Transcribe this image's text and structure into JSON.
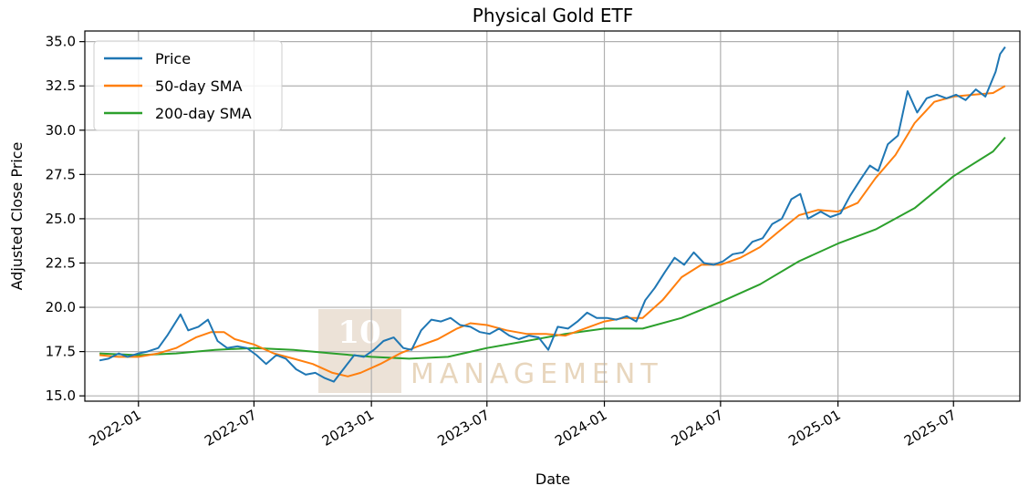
{
  "chart_data": {
    "type": "line",
    "title": "Physical Gold ETF",
    "xlabel": "Date",
    "ylabel": "Adjusted Close Price",
    "xlim": [
      "2021-10-09",
      "2025-10-13"
    ],
    "ylim": [
      14.7,
      35.6
    ],
    "x_ticks": [
      "2022-01",
      "2022-07",
      "2023-01",
      "2023-07",
      "2024-01",
      "2024-07",
      "2025-01",
      "2025-07"
    ],
    "y_ticks": [
      15.0,
      17.5,
      20.0,
      22.5,
      25.0,
      27.5,
      30.0,
      32.5,
      35.0
    ],
    "grid": true,
    "legend_position": "upper left",
    "watermark": {
      "number": "10",
      "word": "MANAGEMENT"
    },
    "series": [
      {
        "name": "Price",
        "color": "#1f77b4",
        "points": [
          [
            "2021-11-01",
            17.0
          ],
          [
            "2021-11-15",
            17.1
          ],
          [
            "2021-12-01",
            17.4
          ],
          [
            "2021-12-15",
            17.2
          ],
          [
            "2022-01-01",
            17.4
          ],
          [
            "2022-01-15",
            17.5
          ],
          [
            "2022-02-01",
            17.7
          ],
          [
            "2022-02-15",
            18.4
          ],
          [
            "2022-03-08",
            19.6
          ],
          [
            "2022-03-20",
            18.7
          ],
          [
            "2022-04-05",
            18.9
          ],
          [
            "2022-04-20",
            19.3
          ],
          [
            "2022-05-05",
            18.1
          ],
          [
            "2022-05-20",
            17.7
          ],
          [
            "2022-06-05",
            17.8
          ],
          [
            "2022-06-20",
            17.7
          ],
          [
            "2022-07-05",
            17.3
          ],
          [
            "2022-07-20",
            16.8
          ],
          [
            "2022-08-05",
            17.3
          ],
          [
            "2022-08-20",
            17.1
          ],
          [
            "2022-09-05",
            16.5
          ],
          [
            "2022-09-20",
            16.2
          ],
          [
            "2022-10-05",
            16.3
          ],
          [
            "2022-10-20",
            16.0
          ],
          [
            "2022-11-03",
            15.8
          ],
          [
            "2022-11-20",
            16.6
          ],
          [
            "2022-12-05",
            17.3
          ],
          [
            "2022-12-20",
            17.2
          ],
          [
            "2023-01-05",
            17.6
          ],
          [
            "2023-01-20",
            18.1
          ],
          [
            "2023-02-05",
            18.3
          ],
          [
            "2023-02-20",
            17.7
          ],
          [
            "2023-03-05",
            17.6
          ],
          [
            "2023-03-20",
            18.7
          ],
          [
            "2023-04-05",
            19.3
          ],
          [
            "2023-04-20",
            19.2
          ],
          [
            "2023-05-05",
            19.4
          ],
          [
            "2023-05-20",
            19.0
          ],
          [
            "2023-06-05",
            18.9
          ],
          [
            "2023-06-20",
            18.6
          ],
          [
            "2023-07-05",
            18.5
          ],
          [
            "2023-07-20",
            18.8
          ],
          [
            "2023-08-05",
            18.4
          ],
          [
            "2023-08-20",
            18.2
          ],
          [
            "2023-09-05",
            18.4
          ],
          [
            "2023-09-20",
            18.3
          ],
          [
            "2023-10-05",
            17.6
          ],
          [
            "2023-10-20",
            18.9
          ],
          [
            "2023-11-05",
            18.8
          ],
          [
            "2023-11-20",
            19.2
          ],
          [
            "2023-12-05",
            19.7
          ],
          [
            "2023-12-20",
            19.4
          ],
          [
            "2024-01-05",
            19.4
          ],
          [
            "2024-01-20",
            19.3
          ],
          [
            "2024-02-05",
            19.5
          ],
          [
            "2024-02-20",
            19.2
          ],
          [
            "2024-03-05",
            20.4
          ],
          [
            "2024-03-20",
            21.1
          ],
          [
            "2024-04-05",
            22.0
          ],
          [
            "2024-04-20",
            22.8
          ],
          [
            "2024-05-05",
            22.4
          ],
          [
            "2024-05-20",
            23.1
          ],
          [
            "2024-06-05",
            22.5
          ],
          [
            "2024-06-20",
            22.4
          ],
          [
            "2024-07-05",
            22.6
          ],
          [
            "2024-07-20",
            23.0
          ],
          [
            "2024-08-05",
            23.1
          ],
          [
            "2024-08-20",
            23.7
          ],
          [
            "2024-09-05",
            23.9
          ],
          [
            "2024-09-20",
            24.7
          ],
          [
            "2024-10-05",
            25.0
          ],
          [
            "2024-10-20",
            26.1
          ],
          [
            "2024-11-03",
            26.4
          ],
          [
            "2024-11-15",
            25.0
          ],
          [
            "2024-12-05",
            25.4
          ],
          [
            "2024-12-20",
            25.1
          ],
          [
            "2025-01-05",
            25.3
          ],
          [
            "2025-01-20",
            26.3
          ],
          [
            "2025-02-05",
            27.2
          ],
          [
            "2025-02-20",
            28.0
          ],
          [
            "2025-03-05",
            27.7
          ],
          [
            "2025-03-20",
            29.2
          ],
          [
            "2025-04-05",
            29.7
          ],
          [
            "2025-04-20",
            32.2
          ],
          [
            "2025-05-05",
            31.0
          ],
          [
            "2025-05-20",
            31.8
          ],
          [
            "2025-06-05",
            32.0
          ],
          [
            "2025-06-20",
            31.8
          ],
          [
            "2025-07-05",
            32.0
          ],
          [
            "2025-07-20",
            31.7
          ],
          [
            "2025-08-05",
            32.3
          ],
          [
            "2025-08-20",
            31.9
          ],
          [
            "2025-09-05",
            33.3
          ],
          [
            "2025-09-12",
            34.3
          ],
          [
            "2025-09-20",
            34.7
          ]
        ]
      },
      {
        "name": "50-day SMA",
        "color": "#ff7f0e",
        "points": [
          [
            "2021-11-01",
            17.3
          ],
          [
            "2021-12-01",
            17.2
          ],
          [
            "2022-01-01",
            17.2
          ],
          [
            "2022-02-01",
            17.4
          ],
          [
            "2022-03-01",
            17.7
          ],
          [
            "2022-04-01",
            18.3
          ],
          [
            "2022-04-25",
            18.6
          ],
          [
            "2022-05-15",
            18.6
          ],
          [
            "2022-06-01",
            18.2
          ],
          [
            "2022-07-01",
            17.9
          ],
          [
            "2022-08-01",
            17.4
          ],
          [
            "2022-09-01",
            17.1
          ],
          [
            "2022-10-01",
            16.8
          ],
          [
            "2022-11-01",
            16.3
          ],
          [
            "2022-11-25",
            16.1
          ],
          [
            "2022-12-15",
            16.3
          ],
          [
            "2023-01-15",
            16.8
          ],
          [
            "2023-02-15",
            17.4
          ],
          [
            "2023-03-15",
            17.8
          ],
          [
            "2023-04-15",
            18.2
          ],
          [
            "2023-05-15",
            18.8
          ],
          [
            "2023-06-05",
            19.1
          ],
          [
            "2023-07-01",
            19.0
          ],
          [
            "2023-08-01",
            18.7
          ],
          [
            "2023-09-01",
            18.5
          ],
          [
            "2023-10-01",
            18.5
          ],
          [
            "2023-11-01",
            18.4
          ],
          [
            "2023-12-01",
            18.8
          ],
          [
            "2024-01-01",
            19.2
          ],
          [
            "2024-02-01",
            19.4
          ],
          [
            "2024-03-01",
            19.4
          ],
          [
            "2024-04-01",
            20.4
          ],
          [
            "2024-05-01",
            21.7
          ],
          [
            "2024-06-01",
            22.4
          ],
          [
            "2024-07-01",
            22.4
          ],
          [
            "2024-08-01",
            22.8
          ],
          [
            "2024-09-01",
            23.4
          ],
          [
            "2024-10-01",
            24.3
          ],
          [
            "2024-11-01",
            25.2
          ],
          [
            "2024-12-01",
            25.5
          ],
          [
            "2025-01-01",
            25.4
          ],
          [
            "2025-02-01",
            25.9
          ],
          [
            "2025-03-01",
            27.3
          ],
          [
            "2025-04-01",
            28.6
          ],
          [
            "2025-05-01",
            30.4
          ],
          [
            "2025-06-01",
            31.6
          ],
          [
            "2025-07-01",
            31.9
          ],
          [
            "2025-08-01",
            32.0
          ],
          [
            "2025-09-01",
            32.1
          ],
          [
            "2025-09-20",
            32.5
          ]
        ]
      },
      {
        "name": "200-day SMA",
        "color": "#2ca02c",
        "points": [
          [
            "2021-11-01",
            17.4
          ],
          [
            "2022-01-01",
            17.3
          ],
          [
            "2022-03-01",
            17.4
          ],
          [
            "2022-05-01",
            17.6
          ],
          [
            "2022-07-01",
            17.7
          ],
          [
            "2022-09-01",
            17.6
          ],
          [
            "2022-11-01",
            17.4
          ],
          [
            "2023-01-01",
            17.2
          ],
          [
            "2023-03-01",
            17.1
          ],
          [
            "2023-05-01",
            17.2
          ],
          [
            "2023-07-01",
            17.7
          ],
          [
            "2023-09-01",
            18.1
          ],
          [
            "2023-11-01",
            18.5
          ],
          [
            "2024-01-01",
            18.8
          ],
          [
            "2024-03-01",
            18.8
          ],
          [
            "2024-05-01",
            19.4
          ],
          [
            "2024-07-01",
            20.3
          ],
          [
            "2024-09-01",
            21.3
          ],
          [
            "2024-11-01",
            22.6
          ],
          [
            "2025-01-01",
            23.6
          ],
          [
            "2025-03-01",
            24.4
          ],
          [
            "2025-05-01",
            25.6
          ],
          [
            "2025-07-01",
            27.4
          ],
          [
            "2025-09-01",
            28.8
          ],
          [
            "2025-09-20",
            29.6
          ]
        ]
      }
    ]
  }
}
